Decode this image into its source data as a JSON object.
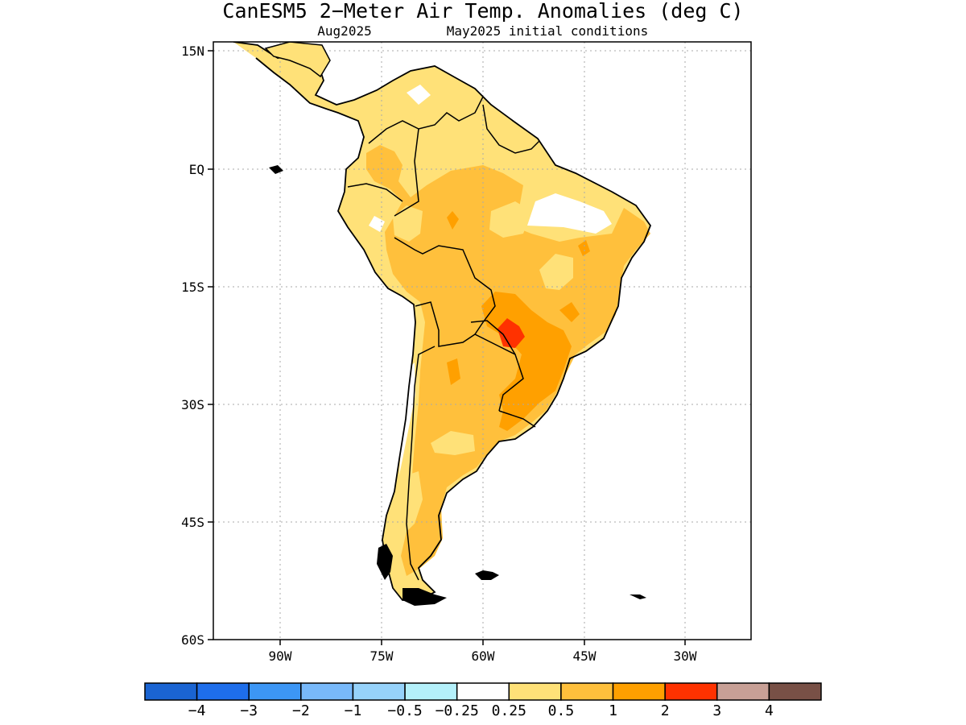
{
  "title": "CanESM5 2−Meter Air Temp. Anomalies (deg C)",
  "subtitle_left": "Aug2025",
  "subtitle_right": "May2025 initial conditions",
  "lat_ticks": [
    "15N",
    "EQ",
    "15S",
    "30S",
    "45S",
    "60S"
  ],
  "lon_ticks": [
    "90W",
    "75W",
    "60W",
    "45W",
    "30W"
  ],
  "colorbar": {
    "labels": [
      "−4",
      "−3",
      "−2",
      "−1",
      "−0.5",
      "−0.25",
      "0.25",
      "0.5",
      "1",
      "2",
      "3",
      "4"
    ],
    "colors": [
      "#1a64d2",
      "#1e6eeb",
      "#3c96f5",
      "#78b9fa",
      "#96d2fa",
      "#b4f0fa",
      "#ffffff",
      "#ffe178",
      "#ffc03c",
      "#ffa000",
      "#ff3200",
      "#c8a096",
      "#785046"
    ]
  },
  "colors": {
    "land_outline": "#000000",
    "grid": "#aaaaaa",
    "anom_025_05": "#ffe178",
    "anom_05_1": "#ffc03c",
    "anom_1_2": "#ffa000",
    "anom_2_3": "#ff3200"
  }
}
